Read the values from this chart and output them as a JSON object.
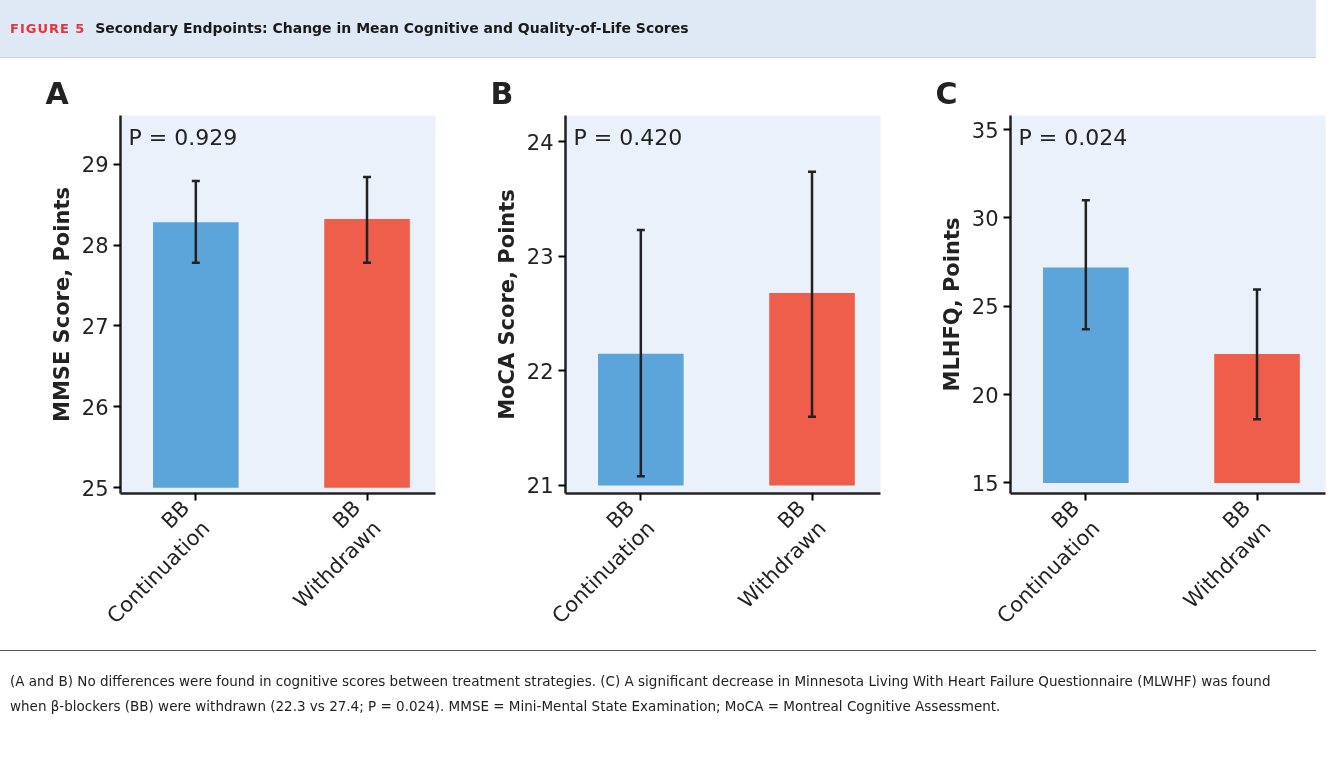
{
  "chart_data": [
    {
      "type": "bar",
      "title": "A",
      "ylabel": "MMSE Score, Points",
      "categories": [
        "BB\nContinuation",
        "BB\nWithdrawn"
      ],
      "colors": [
        "#5ba5da",
        "#ef5e4a"
      ],
      "values": [
        3.28,
        3.32
      ],
      "base": [
        25,
        25
      ],
      "errors": [
        [
          27.78,
          28.79
        ],
        [
          27.78,
          28.84
        ]
      ],
      "ylim": [
        24.93,
        29.6
      ],
      "yticks": [
        25,
        26,
        27,
        28,
        29
      ],
      "grid": false,
      "annotations": [
        "P = 0.929"
      ]
    },
    {
      "type": "bar",
      "title": "B",
      "ylabel": "MoCA Score, Points",
      "categories": [
        "BB\nContinuation",
        "BB\nWithdrawn"
      ],
      "colors": [
        "#5ba5da",
        "#ef5e4a"
      ],
      "values": [
        1.15,
        1.68
      ],
      "base": [
        21,
        21
      ],
      "errors": [
        [
          21.08,
          23.23
        ],
        [
          21.6,
          23.74
        ]
      ],
      "ylim": [
        20.93,
        24.23
      ],
      "yticks": [
        21,
        22,
        23,
        24
      ],
      "grid": false,
      "annotations": [
        "P = 0.420"
      ]
    },
    {
      "type": "bar",
      "title": "C",
      "ylabel": "MLHFQ, Points",
      "categories": [
        "BB\nContinuation",
        "BB\nWithdrawn"
      ],
      "colors": [
        "#5ba5da",
        "#ef5e4a"
      ],
      "values": [
        12.2,
        7.3
      ],
      "base": [
        15,
        15
      ],
      "errors": [
        [
          23.7,
          31.0
        ],
        [
          18.6,
          25.95
        ]
      ],
      "ylim": [
        14.4,
        35.8
      ],
      "yticks": [
        15,
        20,
        25,
        30,
        35
      ],
      "grid": false,
      "annotations": [
        "P = 0.024"
      ]
    },
    {
      "type": "other",
      "title": "FIGURE 5 Secondary Endpoints: Change in Mean Cognitive and Quality-of-Life Scores",
      "annotations": [
        "(A and B) No differences were found in cognitive scores between treatment strategies. (C) A significant decrease in Minnesota Living With Heart Failure Questionnaire (MLWHF) was found when β-blockers (BB) were withdrawn (22.3 vs 27.4; P = 0.024). MMSE = Mini-Mental State Examination; MoCA = Montreal Cognitive Assessment."
      ]
    }
  ]
}
